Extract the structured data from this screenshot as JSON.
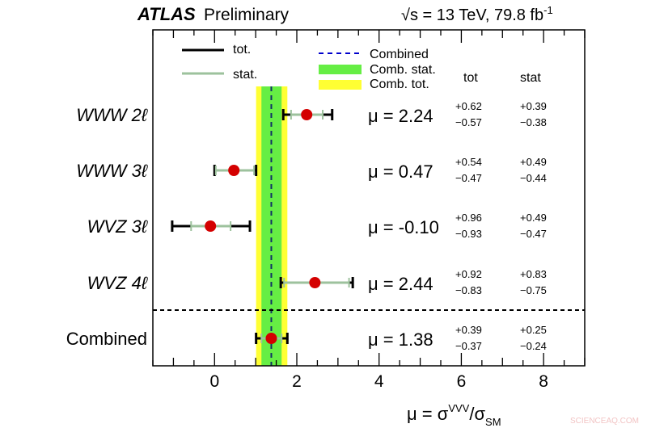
{
  "header": {
    "experiment": "ATLAS",
    "status": "Preliminary",
    "energy": "√s = 13 TeV, 79.8 fb",
    "lumi_exp": "-1"
  },
  "watermark": "SCIENCEAQ.COM",
  "chart_data": {
    "type": "forest",
    "xlabel": "μ = σ",
    "xlabel_sup": "VVV",
    "xlabel_sep": "/σ",
    "xlabel_sub": "SM",
    "xlim": [
      -1.5,
      9
    ],
    "xticks": [
      0,
      2,
      4,
      6,
      8
    ],
    "minor_tick_step": 0.5,
    "column_headers": {
      "tot": "tot",
      "stat": "stat"
    },
    "legend": {
      "tot": "tot.",
      "stat": "stat.",
      "combined": "Combined",
      "comb_stat": "Comb. stat.",
      "comb_tot": "Comb. tot."
    },
    "colors": {
      "point": "#d40000",
      "tot": "#000000",
      "stat": "#9dc29d",
      "comb_line": "#0000cc",
      "comb_stat": "#66ee44",
      "comb_tot": "#ffff33"
    },
    "entries": [
      {
        "label": "WWW",
        "channel": "2ℓ",
        "mu": 2.24,
        "mu_text": "μ = 2.24",
        "tot_up": 0.62,
        "tot_dn": 0.57,
        "stat_up": 0.39,
        "stat_dn": 0.38,
        "tot_up_text": "+0.62",
        "tot_dn_text": "−0.57",
        "stat_up_text": "+0.39",
        "stat_dn_text": "−0.38"
      },
      {
        "label": "WWW",
        "channel": "3ℓ",
        "mu": 0.47,
        "mu_text": "μ = 0.47",
        "tot_up": 0.54,
        "tot_dn": 0.47,
        "stat_up": 0.49,
        "stat_dn": 0.44,
        "tot_up_text": "+0.54",
        "tot_dn_text": "−0.47",
        "stat_up_text": "+0.49",
        "stat_dn_text": "−0.44"
      },
      {
        "label": "WVZ",
        "channel": "3ℓ",
        "mu": -0.1,
        "mu_text": "μ = -0.10",
        "tot_up": 0.96,
        "tot_dn": 0.93,
        "stat_up": 0.49,
        "stat_dn": 0.47,
        "tot_up_text": "+0.96",
        "tot_dn_text": "−0.93",
        "stat_up_text": "+0.49",
        "stat_dn_text": "−0.47"
      },
      {
        "label": "WVZ",
        "channel": "4ℓ",
        "mu": 2.44,
        "mu_text": "μ = 2.44",
        "tot_up": 0.92,
        "tot_dn": 0.83,
        "stat_up": 0.83,
        "stat_dn": 0.75,
        "tot_up_text": "+0.92",
        "tot_dn_text": "−0.83",
        "stat_up_text": "+0.83",
        "stat_dn_text": "−0.75"
      },
      {
        "label": "Combined",
        "channel": "",
        "mu": 1.38,
        "mu_text": "μ = 1.38",
        "tot_up": 0.39,
        "tot_dn": 0.37,
        "stat_up": 0.25,
        "stat_dn": 0.24,
        "tot_up_text": "+0.39",
        "tot_dn_text": "−0.37",
        "stat_up_text": "+0.25",
        "stat_dn_text": "−0.24"
      }
    ]
  }
}
